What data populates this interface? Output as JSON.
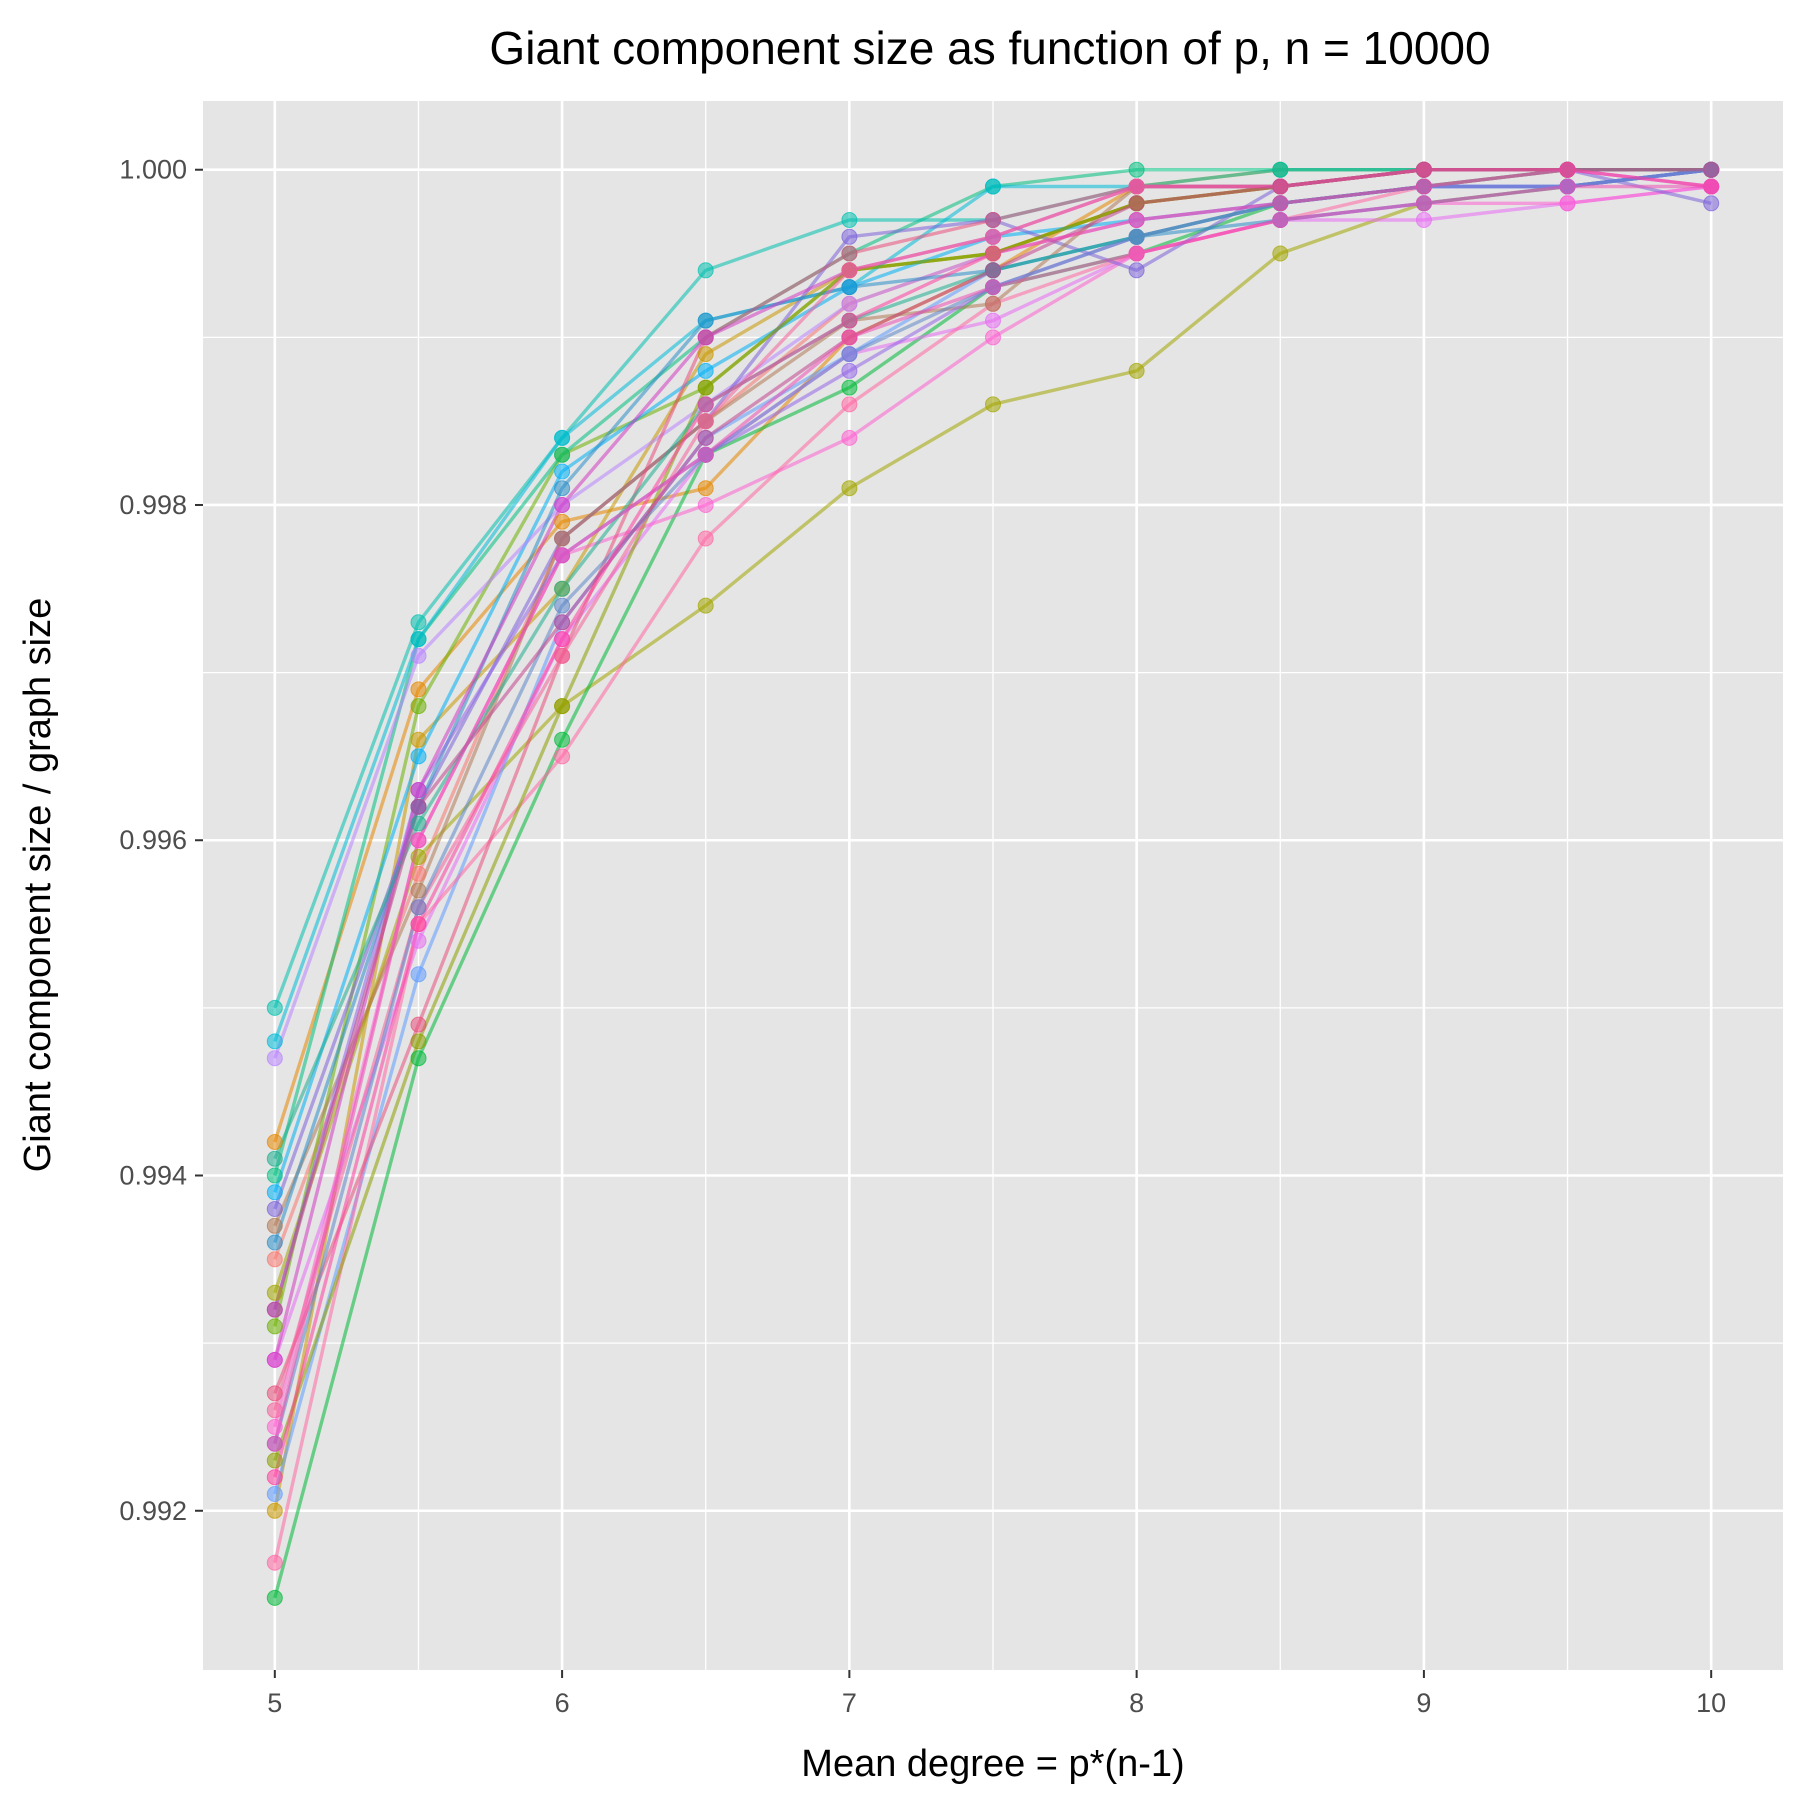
{
  "chart_data": {
    "type": "line",
    "title": "Giant component size as function of p, n = 10000",
    "xlabel": "Mean degree = p*(n-1)",
    "ylabel": "Giant component size / graph size",
    "x": [
      5,
      5.5,
      6,
      6.5,
      7,
      7.5,
      8,
      8.5,
      9,
      9.5,
      10
    ],
    "xticks": [
      5,
      6,
      7,
      8,
      9,
      10
    ],
    "xtick_labels": [
      "5",
      "6",
      "7",
      "8",
      "9",
      "10"
    ],
    "yticks": [
      0.992,
      0.994,
      0.996,
      0.998,
      1.0
    ],
    "ytick_labels": [
      "0.992",
      "0.994",
      "0.996",
      "0.998",
      "1.000"
    ],
    "xlim": [
      4.75,
      10.25
    ],
    "ylim": [
      0.99105,
      1.00041
    ],
    "grid": true,
    "legend": "none",
    "background": "#e5e5e5",
    "grid_color": "#ffffff",
    "series": [
      {
        "color": "#f8766d",
        "values": [
          0.9935,
          0.9958,
          0.9978,
          0.9985,
          0.9992,
          0.9995,
          0.9998,
          0.9999,
          1.0,
          1.0,
          1.0
        ]
      },
      {
        "color": "#e58700",
        "values": [
          0.9942,
          0.9969,
          0.9979,
          0.9981,
          0.999,
          0.9994,
          0.9999,
          1.0,
          1.0,
          1.0,
          1.0
        ]
      },
      {
        "color": "#c99800",
        "values": [
          0.992,
          0.9966,
          0.9975,
          0.9989,
          0.9994,
          0.9995,
          0.9998,
          0.9999,
          1.0,
          1.0,
          1.0
        ]
      },
      {
        "color": "#a3a500",
        "values": [
          0.9933,
          0.9959,
          0.9968,
          0.9974,
          0.9981,
          0.9986,
          0.9988,
          0.9995,
          0.9998,
          0.9999,
          1.0
        ]
      },
      {
        "color": "#6bb100",
        "values": [
          0.9931,
          0.9968,
          0.9983,
          0.9987,
          0.9994,
          0.9995,
          0.9998,
          0.9999,
          1.0,
          1.0,
          1.0
        ]
      },
      {
        "color": "#00ba38",
        "values": [
          0.99148,
          0.9947,
          0.9966,
          0.9983,
          0.9987,
          0.9993,
          0.9995,
          0.9998,
          0.9999,
          1.0,
          1.0
        ]
      },
      {
        "color": "#00bf7d",
        "values": [
          0.994,
          0.9972,
          0.9983,
          0.999,
          0.9995,
          0.9999,
          1.0,
          1.0,
          1.0,
          1.0,
          1.0
        ]
      },
      {
        "color": "#00c0af",
        "values": [
          0.995,
          0.9973,
          0.9984,
          0.9994,
          0.9997,
          0.9997,
          0.9999,
          1.0,
          1.0,
          1.0,
          1.0
        ]
      },
      {
        "color": "#00bcd8",
        "values": [
          0.9948,
          0.9972,
          0.9984,
          0.9991,
          0.9993,
          0.9999,
          0.9999,
          0.9999,
          1.0,
          1.0,
          1.0
        ]
      },
      {
        "color": "#00b0f6",
        "values": [
          0.9939,
          0.9965,
          0.9982,
          0.9988,
          0.9993,
          0.9996,
          0.9997,
          0.9998,
          0.9999,
          0.9999,
          1.0
        ]
      },
      {
        "color": "#619cff",
        "values": [
          0.9921,
          0.9952,
          0.9973,
          0.9984,
          0.9989,
          0.9994,
          0.9996,
          0.9998,
          0.9999,
          0.9999,
          1.0
        ]
      },
      {
        "color": "#b983ff",
        "values": [
          0.9947,
          0.9971,
          0.998,
          0.9986,
          0.9992,
          0.9995,
          0.9997,
          0.9998,
          0.9999,
          0.9999,
          1.0
        ]
      },
      {
        "color": "#e76bf3",
        "values": [
          0.9929,
          0.9954,
          0.9972,
          0.9983,
          0.9989,
          0.9991,
          0.9995,
          0.9997,
          0.9997,
          0.9998,
          0.9999
        ]
      },
      {
        "color": "#fd61d1",
        "values": [
          0.9925,
          0.996,
          0.9977,
          0.998,
          0.9984,
          0.999,
          0.9995,
          0.9997,
          0.9998,
          0.9998,
          0.9999
        ]
      },
      {
        "color": "#ff67a4",
        "values": [
          0.99169,
          0.9955,
          0.9965,
          0.9978,
          0.9986,
          0.9992,
          0.9995,
          0.9997,
          0.9999,
          1.0,
          1.0
        ]
      },
      {
        "color": "#7b63d9",
        "values": [
          0.9938,
          0.9962,
          0.9978,
          0.9985,
          0.9996,
          0.9997,
          0.9994,
          0.9999,
          1.0,
          1.0,
          0.9998
        ]
      },
      {
        "color": "#b07a55",
        "values": [
          0.9937,
          0.9957,
          0.9978,
          0.9985,
          0.9991,
          0.9992,
          0.9999,
          0.9999,
          1.0,
          1.0,
          1.0
        ]
      },
      {
        "color": "#2c8ec8",
        "values": [
          0.9936,
          0.9962,
          0.9981,
          0.9991,
          0.9993,
          0.9994,
          0.9996,
          0.9997,
          0.9998,
          0.9999,
          1.0
        ]
      },
      {
        "color": "#e8507c",
        "values": [
          0.9927,
          0.9949,
          0.9971,
          0.999,
          0.9995,
          0.9997,
          0.9999,
          0.9999,
          1.0,
          1.0,
          1.0
        ]
      },
      {
        "color": "#8d9e00",
        "values": [
          0.9923,
          0.9948,
          0.9968,
          0.9987,
          0.9994,
          0.9995,
          0.9998,
          0.9999,
          1.0,
          1.0,
          1.0
        ]
      },
      {
        "color": "#9466e8",
        "values": [
          0.9932,
          0.9963,
          0.9977,
          0.9983,
          0.9988,
          0.9993,
          0.9996,
          0.9998,
          0.9999,
          0.9999,
          1.0
        ]
      },
      {
        "color": "#d43dc2",
        "values": [
          0.9929,
          0.9963,
          0.998,
          0.999,
          0.9994,
          0.9996,
          0.9999,
          0.9999,
          1.0,
          1.0,
          0.9999
        ]
      },
      {
        "color": "#f5629a",
        "values": [
          0.9926,
          0.9956,
          0.9971,
          0.9985,
          0.9994,
          0.9996,
          0.9999,
          0.9999,
          1.0,
          1.0,
          1.0
        ]
      },
      {
        "color": "#1fae8f",
        "values": [
          0.9941,
          0.9961,
          0.9975,
          0.9986,
          0.9991,
          0.9994,
          0.9996,
          0.9998,
          0.9999,
          1.0,
          1.0
        ]
      },
      {
        "color": "#5f86c9",
        "values": [
          0.9924,
          0.9956,
          0.9974,
          0.9983,
          0.9989,
          0.9993,
          0.9996,
          0.9998,
          0.9999,
          0.9999,
          1.0
        ]
      },
      {
        "color": "#c3468f",
        "values": [
          0.9932,
          0.9962,
          0.9973,
          0.9984,
          0.999,
          0.9994,
          0.9998,
          0.9999,
          1.0,
          1.0,
          1.0
        ]
      },
      {
        "color": "#ff3fa0",
        "values": [
          0.9922,
          0.9955,
          0.9972,
          0.9986,
          0.9991,
          0.9995,
          0.9997,
          0.9998,
          0.9999,
          1.0,
          0.9999
        ]
      },
      {
        "color": "#ee4fb5",
        "values": [
          0.9924,
          0.996,
          0.9977,
          0.9983,
          0.999,
          0.9993,
          0.9995,
          0.9997,
          0.9998,
          0.9999,
          0.9999
        ]
      }
    ]
  }
}
